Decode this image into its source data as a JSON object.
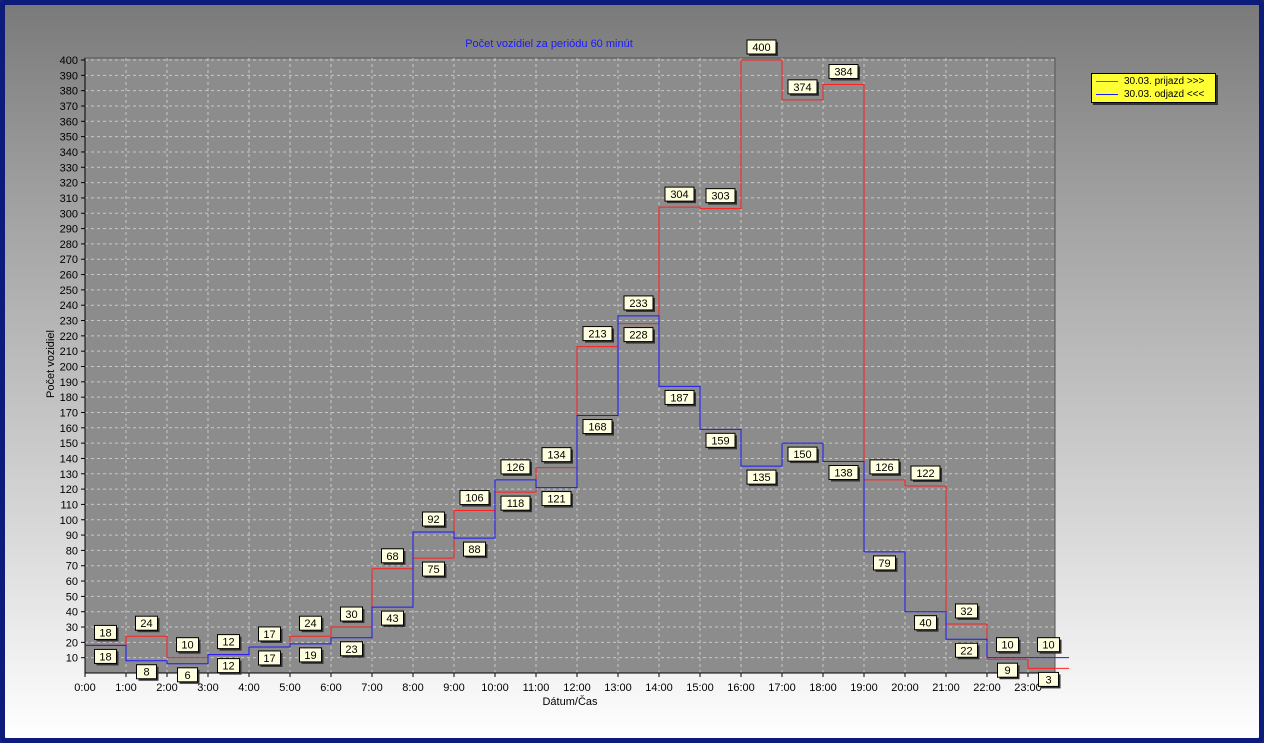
{
  "chart_data": {
    "type": "line",
    "step": true,
    "title": "Počet vozidiel za periódu 60 minút",
    "xlabel": "Dátum/Čas",
    "ylabel": "Počet vozidiel",
    "ylim": [
      0,
      405
    ],
    "yticks": [
      10,
      20,
      30,
      40,
      50,
      60,
      70,
      80,
      90,
      100,
      110,
      120,
      130,
      140,
      150,
      160,
      170,
      180,
      190,
      200,
      210,
      220,
      230,
      240,
      250,
      260,
      270,
      280,
      290,
      300,
      310,
      320,
      330,
      340,
      350,
      360,
      370,
      380,
      390,
      400
    ],
    "categories": [
      "0:00",
      "1:00",
      "2:00",
      "3:00",
      "4:00",
      "5:00",
      "6:00",
      "7:00",
      "8:00",
      "9:00",
      "10:00",
      "11:00",
      "12:00",
      "13:00",
      "14:00",
      "15:00",
      "16:00",
      "17:00",
      "18:00",
      "19:00",
      "20:00",
      "21:00",
      "22:00",
      "23:00"
    ],
    "grid": true,
    "legend_position": "top-right",
    "series": [
      {
        "name": "30.03.  prijazd >>>",
        "color": "#ff2020",
        "values": [
          18,
          24,
          10,
          12,
          17,
          24,
          30,
          68,
          75,
          106,
          118,
          134,
          213,
          228,
          304,
          303,
          400,
          374,
          384,
          126,
          122,
          32,
          9,
          3
        ]
      },
      {
        "name": "30.03.  odjazd <<<",
        "color": "#1a1aff",
        "values": [
          18,
          8,
          6,
          12,
          17,
          19,
          23,
          43,
          92,
          88,
          126,
          121,
          168,
          233,
          187,
          159,
          135,
          150,
          138,
          79,
          40,
          22,
          10,
          10
        ]
      }
    ]
  },
  "colors": {
    "plot_background": "#8c8c8c",
    "legend_background": "#ffff33"
  }
}
